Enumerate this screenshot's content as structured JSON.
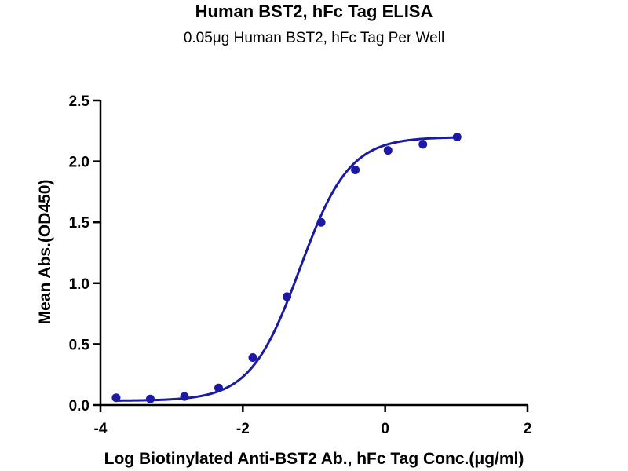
{
  "chart_data": {
    "type": "scatter",
    "title": "Human BST2, hFc Tag ELISA",
    "subtitle": "0.05μg Human BST2, hFc Tag Per Well",
    "xlabel": "Log Biotinylated Anti-BST2 Ab., hFc Tag Conc.(μg/ml)",
    "ylabel": "Mean Abs.(OD450)",
    "xlim": [
      -4,
      2
    ],
    "ylim": [
      0,
      2.5
    ],
    "x_ticks": [
      -4,
      -2,
      0,
      2
    ],
    "x_tick_labels": [
      "-4",
      "-2",
      "0",
      "2"
    ],
    "y_ticks": [
      0,
      0.5,
      1,
      1.5,
      2,
      2.5
    ],
    "y_tick_labels": [
      "0.0",
      "0.5",
      "1.0",
      "1.5",
      "2.0",
      "2.5"
    ],
    "grid": false,
    "fit": "four-parameter logistic",
    "color": "#1a1aa6",
    "series": [
      {
        "x": [
          -3.78,
          -3.3,
          -2.82,
          -2.34,
          -1.86,
          -1.38,
          -0.9,
          -0.42,
          0.04,
          0.53,
          1.01
        ],
        "y": [
          0.06,
          0.05,
          0.07,
          0.14,
          0.39,
          0.89,
          1.5,
          1.93,
          2.09,
          2.14,
          2.2
        ]
      }
    ]
  }
}
